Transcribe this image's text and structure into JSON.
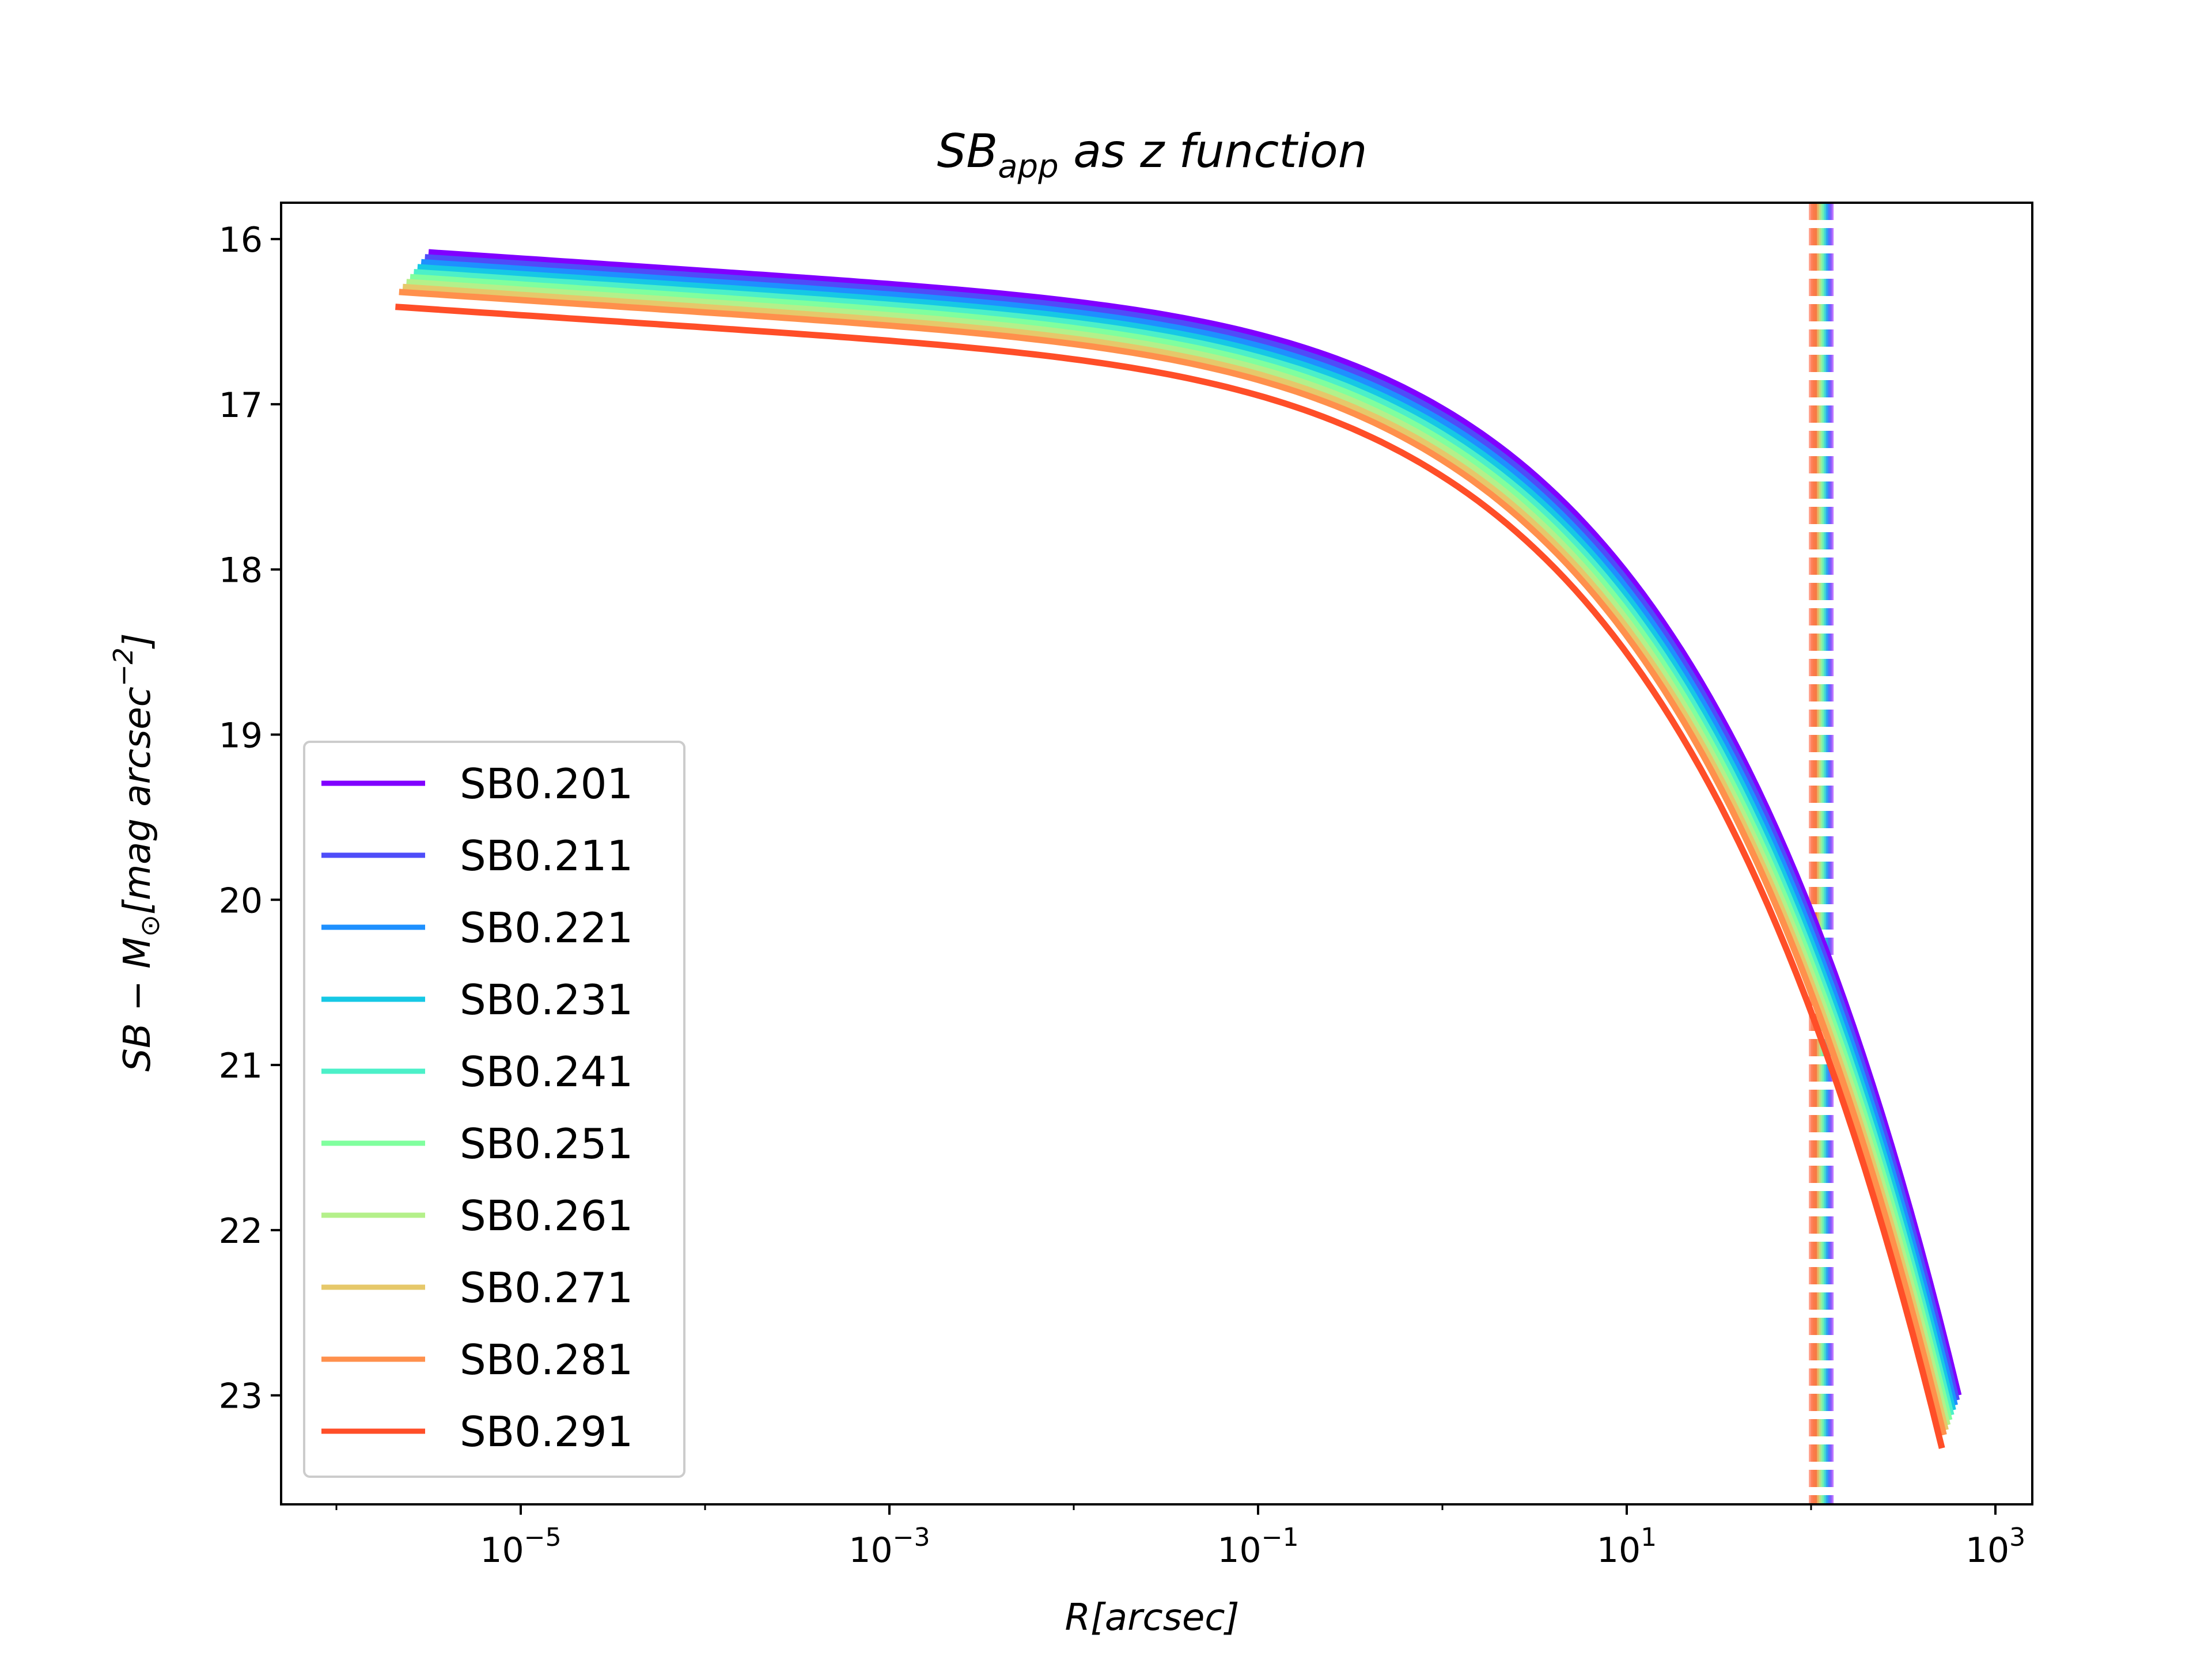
{
  "chart_data": {
    "type": "line",
    "title": "SB",
    "title_sub": "app",
    "title_rest": " as z function",
    "xlabel": "R[arcsec]",
    "ylabel_main": "SB − M",
    "ylabel_sub": "⊙",
    "ylabel_unit": "[mag arcsec",
    "ylabel_sup": "−2",
    "ylabel_close": "]",
    "xscale": "log",
    "xlim_log10": [
      -6.3,
      3.2
    ],
    "ylim": [
      23.66,
      15.78
    ],
    "y_inverted": true,
    "x_ticks": [
      {
        "base": "10",
        "exp": "−5",
        "log10": -5
      },
      {
        "base": "10",
        "exp": "−3",
        "log10": -3
      },
      {
        "base": "10",
        "exp": "−1",
        "log10": -1
      },
      {
        "base": "10",
        "exp": "1",
        "log10": 1
      },
      {
        "base": "10",
        "exp": "3",
        "log10": 3
      }
    ],
    "y_ticks": [
      "16",
      "17",
      "18",
      "19",
      "20",
      "21",
      "22",
      "23"
    ],
    "legend_position": "lower-left",
    "series": [
      {
        "name": "SB0.201",
        "color": "#8000ff",
        "x_start_log10": -5.5,
        "x_end_log10": 2.8,
        "y_start": 16.08,
        "y_end": 23.0,
        "vline_log10": 2.1
      },
      {
        "name": "SB0.211",
        "color": "#4e4df9",
        "x_start_log10": -5.52,
        "x_end_log10": 2.79,
        "y_start": 16.11,
        "y_end": 23.03,
        "vline_log10": 2.09
      },
      {
        "name": "SB0.221",
        "color": "#1e90ff",
        "x_start_log10": -5.54,
        "x_end_log10": 2.78,
        "y_start": 16.14,
        "y_end": 23.06,
        "vline_log10": 2.08
      },
      {
        "name": "SB0.231",
        "color": "#16c8e5",
        "x_start_log10": -5.56,
        "x_end_log10": 2.77,
        "y_start": 16.17,
        "y_end": 23.09,
        "vline_log10": 2.07
      },
      {
        "name": "SB0.241",
        "color": "#4cf0c8",
        "x_start_log10": -5.58,
        "x_end_log10": 2.76,
        "y_start": 16.2,
        "y_end": 23.12,
        "vline_log10": 2.06
      },
      {
        "name": "SB0.251",
        "color": "#80ff9e",
        "x_start_log10": -5.6,
        "x_end_log10": 2.75,
        "y_start": 16.23,
        "y_end": 23.15,
        "vline_log10": 2.05
      },
      {
        "name": "SB0.261",
        "color": "#b4f08a",
        "x_start_log10": -5.62,
        "x_end_log10": 2.74,
        "y_start": 16.26,
        "y_end": 23.18,
        "vline_log10": 2.04
      },
      {
        "name": "SB0.271",
        "color": "#e6c86a",
        "x_start_log10": -5.64,
        "x_end_log10": 2.73,
        "y_start": 16.29,
        "y_end": 23.21,
        "vline_log10": 2.03
      },
      {
        "name": "SB0.281",
        "color": "#ff904c",
        "x_start_log10": -5.66,
        "x_end_log10": 2.72,
        "y_start": 16.32,
        "y_end": 23.24,
        "vline_log10": 2.02
      },
      {
        "name": "SB0.291",
        "color": "#ff4e28",
        "x_start_log10": -5.68,
        "x_end_log10": 2.71,
        "y_start": 16.41,
        "y_end": 23.32,
        "vline_log10": 2.01
      }
    ]
  }
}
